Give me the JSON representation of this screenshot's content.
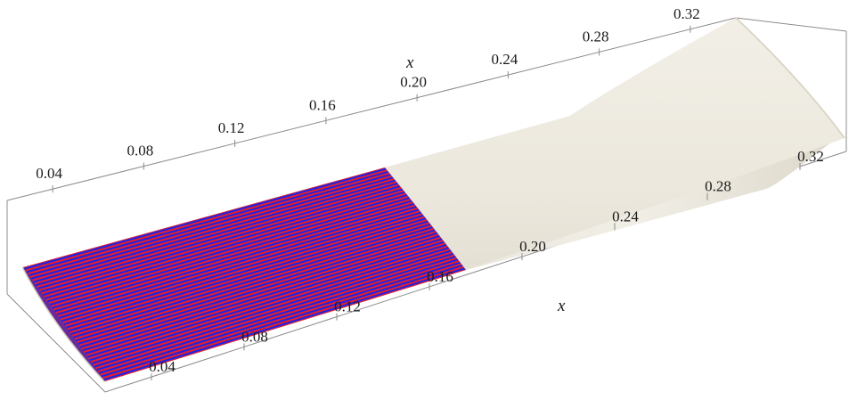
{
  "axes": {
    "top_axis": {
      "title": "x",
      "ticks": [
        "0.04",
        "0.08",
        "0.12",
        "0.16",
        "0.20",
        "0.24",
        "0.28",
        "0.32"
      ]
    },
    "bottom_axis": {
      "title": "x",
      "ticks": [
        "0.04",
        "0.08",
        "0.12",
        "0.16",
        "0.20",
        "0.24",
        "0.28",
        "0.32"
      ]
    }
  },
  "colors": {
    "surface": "#ece8dd",
    "surface_shadow": "#d6d1c2",
    "stripe_red": "#e8202a",
    "stripe_blue": "#1c24e6",
    "stripe_purple": "#6a2a9a",
    "frame": "#8c8c8c"
  }
}
